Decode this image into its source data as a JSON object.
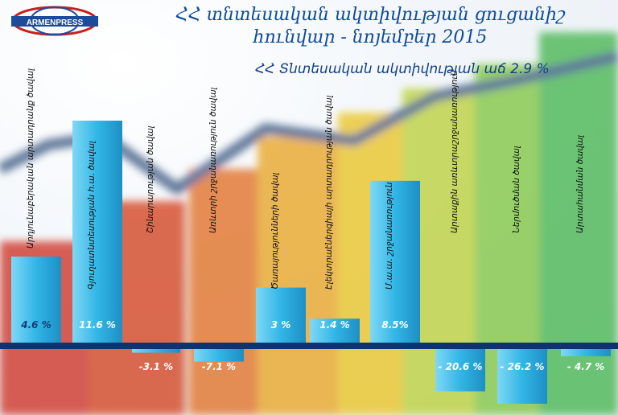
{
  "logo_text": "ARMENPRESS",
  "title_line1": "ՀՀ տնտեսական ակտիվության ցուցանիշ",
  "title_line2": "հունվար - նոյեմբեր 2015",
  "subtitle": "ՀՀ Տնտեսական ակտիվության աճ 2.9 %",
  "chart_data": {
    "type": "bar",
    "categories": [
      "Արդյունաբերական արտադրանք ծավալ",
      "Գյուղատնտեսության հ.ա. ծավալ",
      "Շինարարության ծավալ",
      "Առևտրի շրջանառություն ծավալ",
      "Ծառայությունների ծավալ",
      "Էլեկտրաէներգիայի արտադրության ծավալ",
      "Մ.ա.ա. շրջանառություն",
      "Արտաքին առևտրաշրջանառություն",
      "Ներմուծման ծավալ",
      "Արտահանման ծավալ"
    ],
    "values": [
      4.6,
      11.6,
      -3.1,
      -7.1,
      3,
      1.4,
      8.5,
      -20.6,
      -26.2,
      -4.7
    ],
    "value_labels": [
      "4.6 %",
      "11.6 %",
      "-3.1 %",
      "-7.1 %",
      "3 %",
      "1.4 %",
      "8.5%",
      "- 20.6 %",
      "- 26.2 %",
      "- 4.7 %"
    ],
    "title": "",
    "xlabel": "",
    "ylabel": "",
    "ylim": [
      -26.2,
      11.6
    ],
    "bar_color": "#2fb4e4"
  }
}
